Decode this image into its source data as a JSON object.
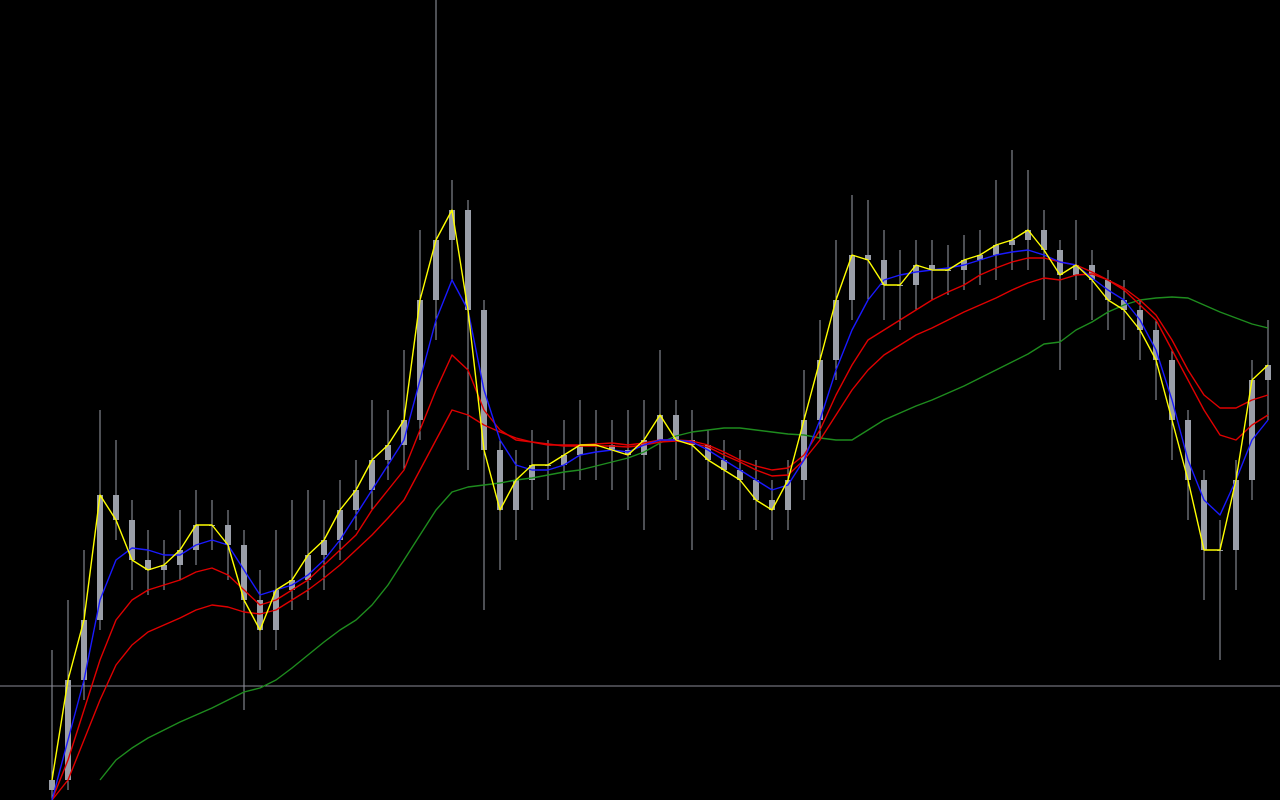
{
  "chart_data": {
    "type": "candlestick",
    "background": "#000000",
    "ylim": [
      0,
      800
    ],
    "candle_color": "#9a9ea8",
    "open": [
      10,
      20,
      120,
      180,
      305,
      280,
      240,
      230,
      235,
      250,
      275,
      275,
      255,
      200,
      170,
      210,
      220,
      245,
      260,
      290,
      310,
      340,
      355,
      380,
      500,
      560,
      590,
      490,
      350,
      290,
      320,
      335,
      335,
      345,
      355,
      355,
      350,
      345,
      360,
      385,
      360,
      355,
      340,
      330,
      320,
      300,
      290,
      320,
      380,
      440,
      500,
      545,
      540,
      515,
      515,
      535,
      530,
      530,
      540,
      545,
      555,
      560,
      570,
      550,
      525,
      535,
      520,
      500,
      490,
      470,
      440,
      380,
      320,
      250,
      250,
      320,
      420
    ],
    "high": [
      150,
      200,
      250,
      390,
      360,
      300,
      270,
      260,
      290,
      310,
      300,
      290,
      270,
      230,
      270,
      300,
      310,
      300,
      320,
      340,
      400,
      390,
      450,
      570,
      800,
      620,
      600,
      500,
      360,
      350,
      370,
      360,
      380,
      400,
      390,
      380,
      390,
      400,
      450,
      400,
      390,
      370,
      360,
      350,
      340,
      320,
      340,
      430,
      480,
      560,
      605,
      600,
      570,
      550,
      560,
      560,
      555,
      565,
      570,
      620,
      650,
      630,
      590,
      560,
      580,
      550,
      530,
      520,
      500,
      480,
      450,
      390,
      330,
      280,
      340,
      440,
      480
    ],
    "low": [
      0,
      10,
      100,
      170,
      260,
      210,
      205,
      210,
      220,
      235,
      250,
      220,
      90,
      130,
      150,
      190,
      200,
      210,
      240,
      270,
      290,
      320,
      330,
      360,
      460,
      520,
      330,
      190,
      230,
      260,
      290,
      300,
      310,
      320,
      320,
      310,
      290,
      270,
      330,
      320,
      250,
      300,
      290,
      280,
      270,
      260,
      270,
      300,
      360,
      420,
      480,
      500,
      480,
      470,
      490,
      500,
      505,
      510,
      515,
      520,
      530,
      530,
      480,
      430,
      500,
      480,
      470,
      460,
      440,
      400,
      340,
      280,
      200,
      140,
      210,
      300,
      380
    ],
    "close": [
      20,
      120,
      180,
      305,
      280,
      240,
      230,
      235,
      250,
      275,
      275,
      255,
      200,
      170,
      210,
      220,
      245,
      260,
      290,
      310,
      340,
      355,
      380,
      500,
      560,
      590,
      490,
      350,
      290,
      320,
      335,
      335,
      345,
      355,
      355,
      350,
      345,
      360,
      385,
      360,
      355,
      340,
      330,
      320,
      300,
      290,
      320,
      380,
      440,
      500,
      545,
      540,
      515,
      515,
      535,
      530,
      530,
      540,
      545,
      555,
      560,
      570,
      550,
      525,
      535,
      520,
      500,
      490,
      470,
      440,
      380,
      320,
      250,
      250,
      320,
      420,
      435
    ],
    "series": [
      {
        "color": "#1e8c1e",
        "values": [
          null,
          null,
          null,
          20,
          40,
          52,
          62,
          70,
          78,
          85,
          92,
          100,
          108,
          112,
          120,
          132,
          145,
          158,
          170,
          180,
          195,
          215,
          240,
          265,
          290,
          308,
          313,
          315,
          317,
          320,
          322,
          325,
          328,
          330,
          334,
          338,
          342,
          348,
          357,
          364,
          368,
          370,
          372,
          372,
          370,
          368,
          366,
          365,
          362,
          360,
          360,
          370,
          380,
          387,
          394,
          400,
          407,
          414,
          422,
          430,
          438,
          446,
          456,
          458,
          470,
          478,
          488,
          495,
          500,
          502,
          503,
          502,
          495,
          488,
          482,
          476,
          472
        ]
      },
      {
        "color": "#e00000",
        "values": [
          0,
          20,
          60,
          100,
          135,
          155,
          168,
          175,
          182,
          190,
          195,
          193,
          188,
          186,
          190,
          200,
          210,
          222,
          235,
          250,
          265,
          282,
          300,
          330,
          360,
          390,
          385,
          375,
          368,
          362,
          358,
          356,
          354,
          354,
          354,
          354,
          353,
          355,
          358,
          359,
          357,
          353,
          345,
          338,
          330,
          324,
          325,
          340,
          360,
          385,
          410,
          430,
          445,
          455,
          465,
          472,
          480,
          488,
          495,
          502,
          510,
          517,
          522,
          520,
          525,
          526,
          520,
          510,
          495,
          480,
          450,
          420,
          390,
          365,
          360,
          375,
          385
        ]
      },
      {
        "color": "#e00000",
        "values": [
          0,
          40,
          90,
          140,
          180,
          200,
          210,
          215,
          220,
          228,
          232,
          225,
          210,
          195,
          200,
          210,
          220,
          235,
          250,
          265,
          290,
          310,
          330,
          370,
          410,
          445,
          430,
          390,
          370,
          360,
          358,
          355,
          355,
          355,
          356,
          357,
          355,
          357,
          360,
          360,
          359,
          355,
          348,
          340,
          334,
          330,
          332,
          345,
          370,
          405,
          435,
          460,
          470,
          480,
          490,
          500,
          508,
          515,
          525,
          532,
          538,
          542,
          542,
          538,
          535,
          528,
          520,
          512,
          500,
          485,
          460,
          430,
          405,
          392,
          392,
          400,
          405
        ]
      },
      {
        "color": "#1a1aff",
        "values": [
          0,
          60,
          120,
          200,
          240,
          252,
          250,
          245,
          245,
          255,
          260,
          255,
          230,
          205,
          210,
          215,
          225,
          240,
          260,
          285,
          310,
          335,
          360,
          420,
          480,
          520,
          490,
          410,
          360,
          335,
          330,
          330,
          335,
          345,
          348,
          350,
          348,
          355,
          360,
          360,
          358,
          350,
          340,
          330,
          320,
          310,
          315,
          340,
          380,
          430,
          470,
          500,
          520,
          525,
          528,
          530,
          532,
          535,
          540,
          545,
          548,
          550,
          545,
          538,
          535,
          522,
          510,
          500,
          480,
          450,
          400,
          340,
          300,
          285,
          320,
          360,
          380
        ]
      },
      {
        "color": "#ffff00",
        "values": [
          20,
          120,
          180,
          305,
          280,
          240,
          230,
          235,
          250,
          275,
          275,
          255,
          200,
          170,
          210,
          220,
          245,
          260,
          290,
          310,
          340,
          355,
          380,
          500,
          560,
          590,
          490,
          350,
          290,
          320,
          335,
          335,
          345,
          355,
          355,
          350,
          345,
          360,
          385,
          360,
          355,
          340,
          330,
          320,
          300,
          290,
          320,
          380,
          440,
          500,
          545,
          540,
          515,
          515,
          535,
          530,
          530,
          540,
          545,
          555,
          560,
          570,
          550,
          525,
          535,
          520,
          500,
          490,
          470,
          440,
          380,
          320,
          250,
          250,
          320,
          420,
          435
        ]
      }
    ],
    "hline": {
      "value": 114,
      "color": "#8a8a96"
    }
  }
}
